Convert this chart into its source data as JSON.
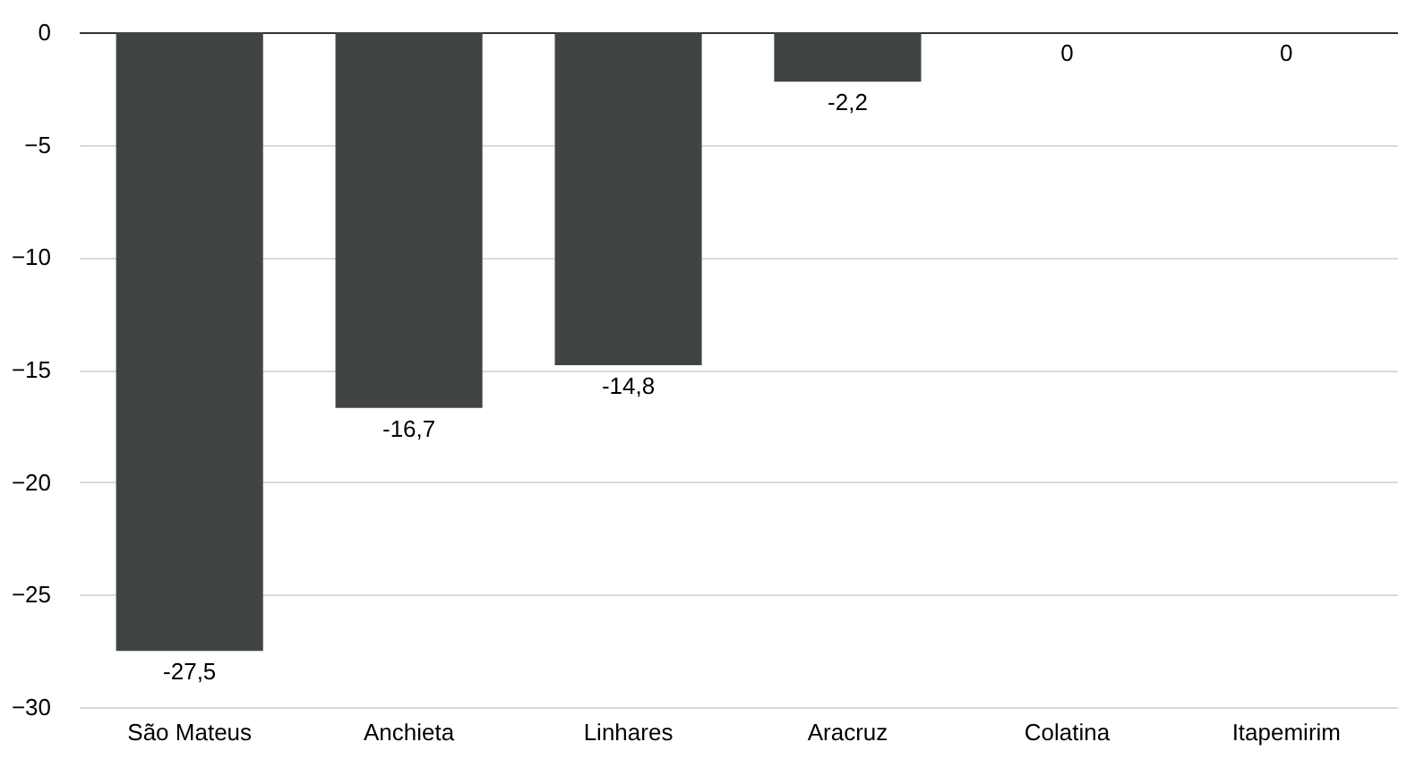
{
  "chart_data": {
    "type": "bar",
    "categories": [
      "São Mateus",
      "Anchieta",
      "Linhares",
      "Aracruz",
      "Colatina",
      "Itapemirim"
    ],
    "values": [
      -27.5,
      -16.7,
      -14.8,
      -2.2,
      0,
      0
    ],
    "value_labels": [
      "-27,5",
      "-16,7",
      "-14,8",
      "-2,2",
      "0",
      "0"
    ],
    "color": "#404444",
    "ylim": [
      -30,
      0
    ],
    "yticks": [
      -30,
      -25,
      -20,
      -15,
      -10,
      -5,
      0
    ],
    "grid": "y"
  }
}
